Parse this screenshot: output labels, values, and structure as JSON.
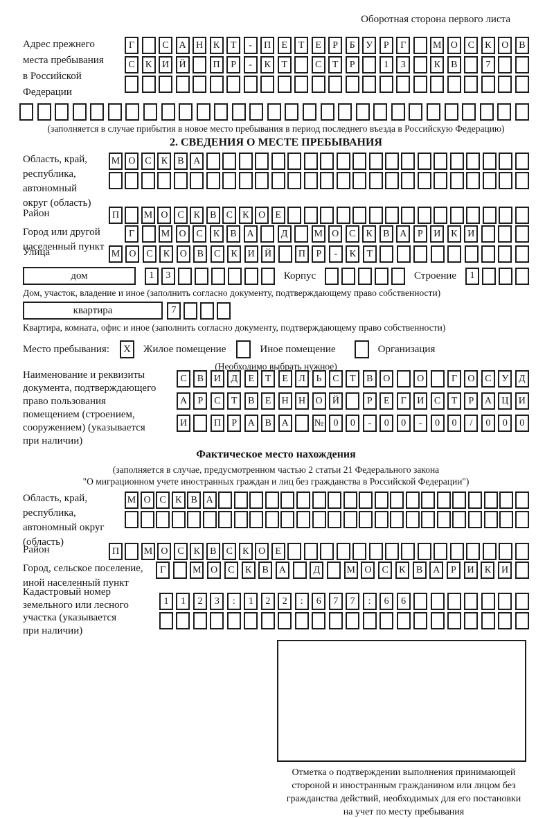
{
  "page": {
    "header_note": "Оборотная сторона первого листа"
  },
  "prev_address": {
    "label_lines": [
      "Адрес прежнего",
      "места пребывания",
      "в Российской",
      "Федерации"
    ],
    "rows": [
      {
        "chars": "Г САНКТ-ПЕТЕРБУРГ МОСКОВ",
        "len": 24
      },
      {
        "chars": "СКИЙ ПР-КТ СТР 13 КВ 7",
        "len": 24
      },
      {
        "chars": "",
        "len": 24
      }
    ],
    "full_row": {
      "chars": "",
      "len": 29
    },
    "caption": "(заполняется в случае прибытия в новое место пребывания в период последнего въезда в Российскую Федерацию)"
  },
  "section2": {
    "title": "2. СВЕДЕНИЯ О МЕСТЕ ПРЕБЫВАНИЯ",
    "region": {
      "label_lines": [
        "Область, край,",
        "республика,",
        "автономный",
        "округ (область)"
      ],
      "rows": [
        {
          "chars": "МОСКВА",
          "len": 26
        },
        {
          "chars": "",
          "len": 26
        }
      ]
    },
    "district": {
      "label_lines": [
        "Район"
      ],
      "rows": [
        {
          "chars": "П МОСКВСКОЕ",
          "len": 26
        }
      ]
    },
    "city": {
      "label_lines": [
        "Город или другой",
        "населенный пункт"
      ],
      "rows": [
        {
          "chars": "Г МОСКВА Д МОСКВАРИКИ",
          "len": 24
        }
      ]
    },
    "street": {
      "label_lines": [
        "Улица"
      ],
      "rows": [
        {
          "chars": "МОСКОВСКИЙ ПР-КТ",
          "len": 25
        }
      ]
    },
    "house_row": {
      "house_label": "дом",
      "house_cells": {
        "chars": "13",
        "len": 8
      },
      "korpus_label": "Корпус",
      "korpus_cells": {
        "chars": "",
        "len": 5
      },
      "stroenie_label": "Строение",
      "stroenie_cells": {
        "chars": "1",
        "len": 4
      },
      "caption": "Дом, участок, владение и иное (заполнить согласно документу, подтверждающему право собственности)"
    },
    "apartment_row": {
      "label": "квартира",
      "cells": {
        "chars": "7",
        "len": 4
      },
      "caption": "Квартира, комната, офис и иное (заполнить согласно документу, подтверждающему право собственности)"
    },
    "stay_place": {
      "label": "Место пребывания:",
      "options": [
        {
          "label": "Жилое помещение",
          "mark": "X"
        },
        {
          "label": "Иное помещение",
          "mark": ""
        },
        {
          "label": "Организация",
          "mark": ""
        }
      ],
      "note": "(Необходимо выбрать нужное)"
    },
    "document": {
      "label_lines": [
        "Наименование и реквизиты",
        "документа, подтверждающего",
        "право пользования",
        "помещением (строением,",
        "сооружением) (указывается",
        "при наличии)"
      ],
      "rows": [
        {
          "chars": "СВИДЕТЕЛЬСТВО О ГОСУД",
          "len": 21
        },
        {
          "chars": "АРСТВЕННОЙ РЕГИСТРАЦИ",
          "len": 21
        },
        {
          "chars": "И ПРАВА №00-00-00/000",
          "len": 21
        }
      ]
    }
  },
  "actual_location": {
    "title": "Фактическое место нахождения",
    "caption_lines": [
      "(заполняется в случае, предусмотренном частью 2 статьи 21 Федерального закона",
      "\"О миграционном учете иностранных граждан и лиц без гражданства в Российской Федерации\")"
    ],
    "region": {
      "label_lines": [
        "Область, край,",
        "республика,",
        "автономный округ",
        "(область)"
      ],
      "rows": [
        {
          "chars": "МОСКВА",
          "len": 26
        },
        {
          "chars": "",
          "len": 26
        }
      ]
    },
    "district": {
      "label_lines": [
        "Район"
      ],
      "rows": [
        {
          "chars": "П МОСКВСКОЕ",
          "len": 26
        }
      ]
    },
    "city": {
      "label_lines": [
        "Город, сельское поселение,",
        "иной населенный пункт"
      ],
      "rows": [
        {
          "chars": "Г МОСКВА Д МОСКВАРИКИ",
          "len": 22
        }
      ]
    },
    "cadastre": {
      "label_lines": [
        "Кадастровый номер",
        "земельного или лесного",
        "участка (указывается",
        "при наличии)"
      ],
      "rows": [
        {
          "chars": "1123:122:677:66",
          "len": 22
        },
        {
          "chars": "",
          "len": 22
        }
      ]
    },
    "stamp_caption_lines": [
      "Отметка о подтверждении выполнения принимающей",
      "стороной и иностранным гражданином или лицом без",
      "гражданства действий, необходимых для его постановки",
      "на учет по месту пребывания"
    ]
  }
}
